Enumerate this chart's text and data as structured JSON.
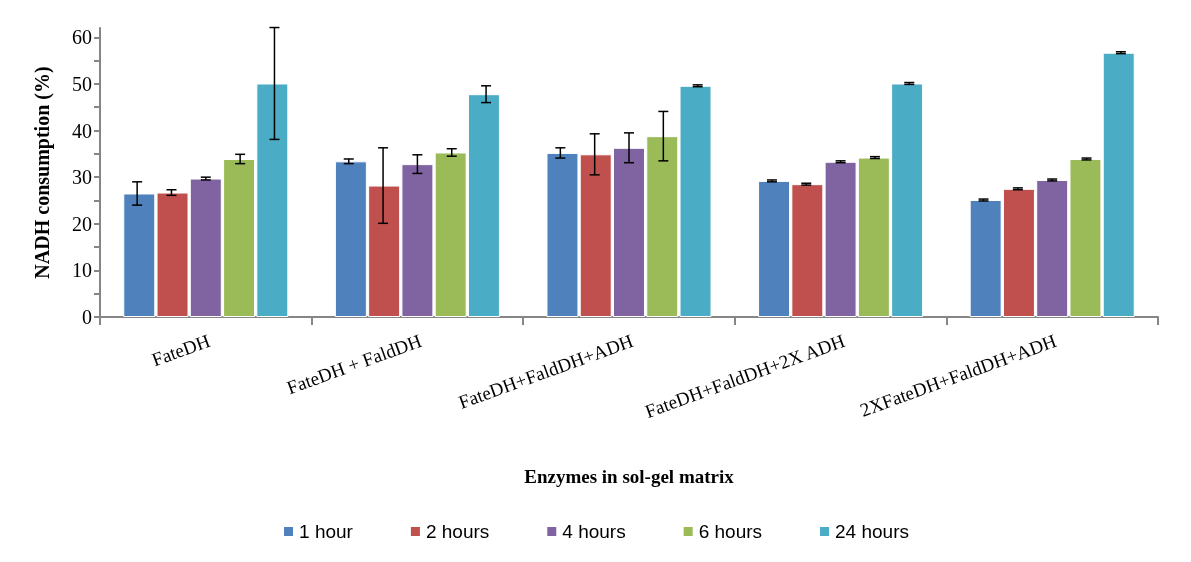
{
  "chart_data": {
    "type": "bar",
    "xlabel": "Enzymes in sol-gel matrix",
    "ylabel": "NADH consumption (%)",
    "categories": [
      "FateDH",
      "FateDH + FaldDH",
      "FateDH+FaldDH+ADH",
      "FateDH+FaldDH+2X ADH",
      "2XFateDH+FaldDH+ADH"
    ],
    "series": [
      {
        "name": "1 hour",
        "color": "#4f81bd",
        "values": [
          26.5,
          33.4,
          35.2,
          29.2,
          25.1
        ],
        "errors": [
          2.5,
          0.5,
          1.1,
          0.2,
          0.2
        ]
      },
      {
        "name": "2 hours",
        "color": "#c0504d",
        "values": [
          26.7,
          28.2,
          34.9,
          28.5,
          27.5
        ],
        "errors": [
          0.6,
          8.1,
          4.4,
          0.2,
          0.2
        ]
      },
      {
        "name": "4 hours",
        "color": "#8064a2",
        "values": [
          29.7,
          32.8,
          36.3,
          33.3,
          29.4
        ],
        "errors": [
          0.3,
          2.0,
          3.2,
          0.2,
          0.2
        ]
      },
      {
        "name": "6 hours",
        "color": "#9bbb59",
        "values": [
          33.9,
          35.3,
          38.8,
          34.2,
          33.9
        ],
        "errors": [
          1.0,
          0.8,
          5.3,
          0.2,
          0.2
        ]
      },
      {
        "name": "24 hours",
        "color": "#4bacc6",
        "values": [
          50.1,
          47.8,
          49.6,
          50.1,
          56.7
        ],
        "errors": [
          12,
          1.8,
          0.2,
          0.2,
          0.2
        ]
      }
    ],
    "ylim": [
      0,
      62
    ],
    "yticks": [
      0,
      {
        "value": 5,
        "label": null
      },
      10,
      {
        "value": 15,
        "label": null
      },
      20,
      {
        "value": 25,
        "label": null
      },
      30,
      {
        "value": 35,
        "label": null
      },
      40,
      {
        "value": 45,
        "label": null
      },
      50,
      {
        "value": 55,
        "label": null
      },
      60
    ],
    "grid": false,
    "legend": "bottom"
  }
}
